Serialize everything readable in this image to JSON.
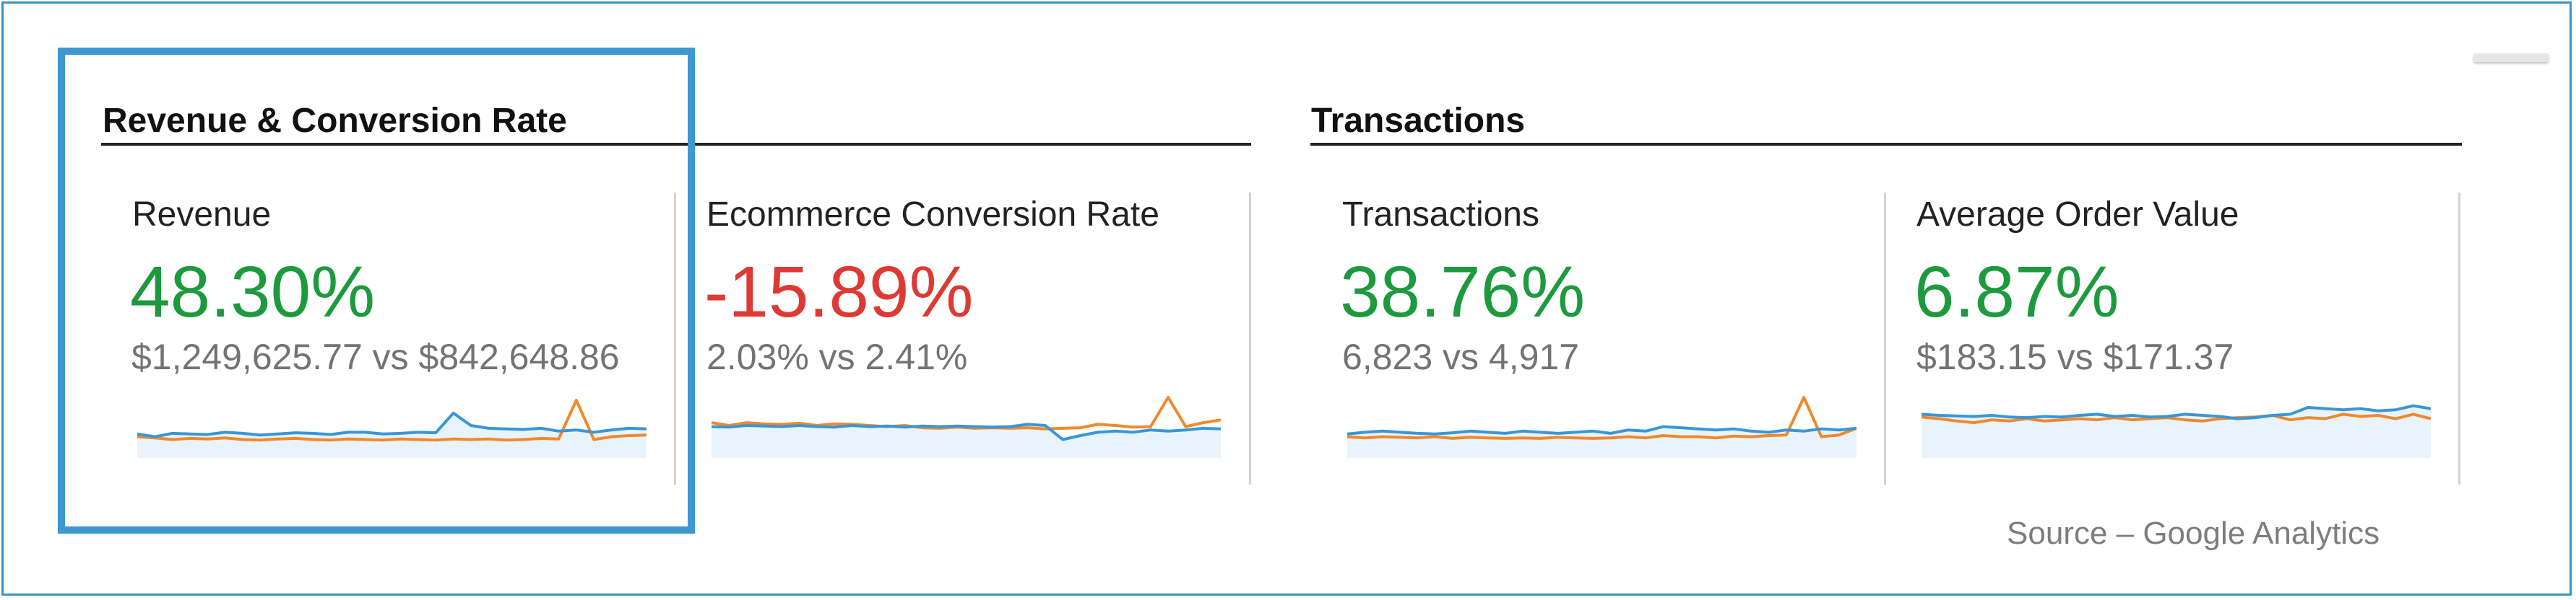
{
  "sections": [
    {
      "title": "Revenue & Conversion Rate"
    },
    {
      "title": "Transactions"
    }
  ],
  "metrics": [
    {
      "label": "Revenue",
      "change": "48.30%",
      "comparison": "$1,249,625.77 vs $842,648.86",
      "series_current": [
        0.35,
        0.3,
        0.36,
        0.35,
        0.34,
        0.38,
        0.36,
        0.33,
        0.35,
        0.37,
        0.36,
        0.34,
        0.38,
        0.38,
        0.35,
        0.36,
        0.38,
        0.37,
        0.72,
        0.5,
        0.45,
        0.44,
        0.43,
        0.45,
        0.4,
        0.42,
        0.38,
        0.42,
        0.45,
        0.44
      ],
      "series_previous": [
        0.3,
        0.28,
        0.25,
        0.27,
        0.26,
        0.28,
        0.25,
        0.24,
        0.26,
        0.27,
        0.25,
        0.24,
        0.26,
        0.25,
        0.24,
        0.26,
        0.25,
        0.24,
        0.26,
        0.25,
        0.26,
        0.24,
        0.25,
        0.27,
        0.26,
        0.95,
        0.25,
        0.3,
        0.32,
        0.33
      ]
    },
    {
      "label": "Ecommerce Conversion Rate",
      "change": "-15.89%",
      "comparison": "2.03% vs 2.41%",
      "series_current": [
        0.48,
        0.47,
        0.5,
        0.49,
        0.48,
        0.5,
        0.48,
        0.47,
        0.5,
        0.48,
        0.49,
        0.47,
        0.49,
        0.48,
        0.49,
        0.48,
        0.47,
        0.48,
        0.52,
        0.5,
        0.25,
        0.32,
        0.38,
        0.4,
        0.38,
        0.42,
        0.4,
        0.42,
        0.45,
        0.44
      ],
      "series_previous": [
        0.55,
        0.5,
        0.55,
        0.53,
        0.52,
        0.54,
        0.5,
        0.53,
        0.52,
        0.5,
        0.48,
        0.5,
        0.46,
        0.45,
        0.47,
        0.45,
        0.46,
        0.45,
        0.46,
        0.44,
        0.45,
        0.46,
        0.52,
        0.5,
        0.47,
        0.48,
        1.0,
        0.48,
        0.55,
        0.6
      ]
    },
    {
      "label": "Transactions",
      "change": "38.76%",
      "comparison": "6,823 vs 4,917",
      "series_current": [
        0.35,
        0.38,
        0.4,
        0.38,
        0.36,
        0.35,
        0.37,
        0.4,
        0.38,
        0.36,
        0.4,
        0.38,
        0.36,
        0.38,
        0.4,
        0.36,
        0.42,
        0.4,
        0.48,
        0.46,
        0.44,
        0.42,
        0.44,
        0.4,
        0.38,
        0.42,
        0.4,
        0.44,
        0.42,
        0.45
      ],
      "series_previous": [
        0.3,
        0.28,
        0.3,
        0.29,
        0.28,
        0.3,
        0.27,
        0.29,
        0.28,
        0.27,
        0.28,
        0.27,
        0.29,
        0.28,
        0.27,
        0.28,
        0.3,
        0.28,
        0.32,
        0.3,
        0.3,
        0.28,
        0.31,
        0.3,
        0.32,
        0.33,
        1.0,
        0.3,
        0.33,
        0.45
      ]
    },
    {
      "label": "Average Order Value",
      "change": "6.87%",
      "comparison": "$183.15 vs $171.37",
      "series_current": [
        0.7,
        0.68,
        0.67,
        0.66,
        0.68,
        0.65,
        0.64,
        0.66,
        0.65,
        0.68,
        0.7,
        0.66,
        0.68,
        0.65,
        0.66,
        0.7,
        0.68,
        0.66,
        0.62,
        0.64,
        0.68,
        0.7,
        0.82,
        0.8,
        0.78,
        0.8,
        0.76,
        0.78,
        0.85,
        0.8
      ],
      "series_previous": [
        0.65,
        0.62,
        0.58,
        0.55,
        0.6,
        0.58,
        0.62,
        0.58,
        0.6,
        0.62,
        0.6,
        0.64,
        0.6,
        0.62,
        0.64,
        0.6,
        0.58,
        0.62,
        0.64,
        0.65,
        0.68,
        0.6,
        0.64,
        0.62,
        0.7,
        0.66,
        0.68,
        0.62,
        0.7,
        0.62
      ]
    }
  ],
  "source": "Source – Google Analytics",
  "colors": {
    "current": "#3a96d7",
    "previous": "#f0892c",
    "area": "#e9f3fb",
    "positive": "#1d9a3e",
    "negative": "#dd3a33",
    "highlight": "#3d97d1"
  }
}
